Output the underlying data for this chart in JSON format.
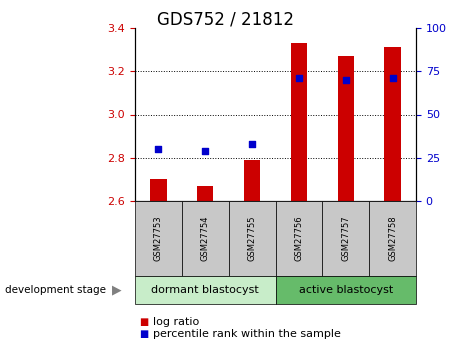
{
  "title": "GDS752 / 21812",
  "samples": [
    "GSM27753",
    "GSM27754",
    "GSM27755",
    "GSM27756",
    "GSM27757",
    "GSM27758"
  ],
  "log_ratio": [
    2.7,
    2.67,
    2.79,
    3.33,
    3.27,
    3.31
  ],
  "log_ratio_baseline": 2.6,
  "percentile_rank": [
    30,
    29,
    33,
    71,
    70,
    71
  ],
  "ylim_left": [
    2.6,
    3.4
  ],
  "ylim_right": [
    0,
    100
  ],
  "yticks_left": [
    2.6,
    2.8,
    3.0,
    3.2,
    3.4
  ],
  "yticks_right": [
    0,
    25,
    50,
    75,
    100
  ],
  "grid_yticks": [
    2.8,
    3.0,
    3.2
  ],
  "bar_color": "#cc0000",
  "dot_color": "#0000cc",
  "bar_width": 0.35,
  "group1_label": "dormant blastocyst",
  "group2_label": "active blastocyst",
  "group1_color": "#c8edc9",
  "group2_color": "#66bb6a",
  "group1_samples": [
    0,
    1,
    2
  ],
  "group2_samples": [
    3,
    4,
    5
  ],
  "legend_bar_label": "log ratio",
  "legend_dot_label": "percentile rank within the sample",
  "left_tick_color": "#cc0000",
  "right_tick_color": "#0000cc",
  "tick_bg_color": "#c8c8c8",
  "dev_stage_label": "development stage",
  "title_fontsize": 12,
  "tick_fontsize": 8,
  "legend_fontsize": 8,
  "sample_fontsize": 6,
  "group_fontsize": 8
}
